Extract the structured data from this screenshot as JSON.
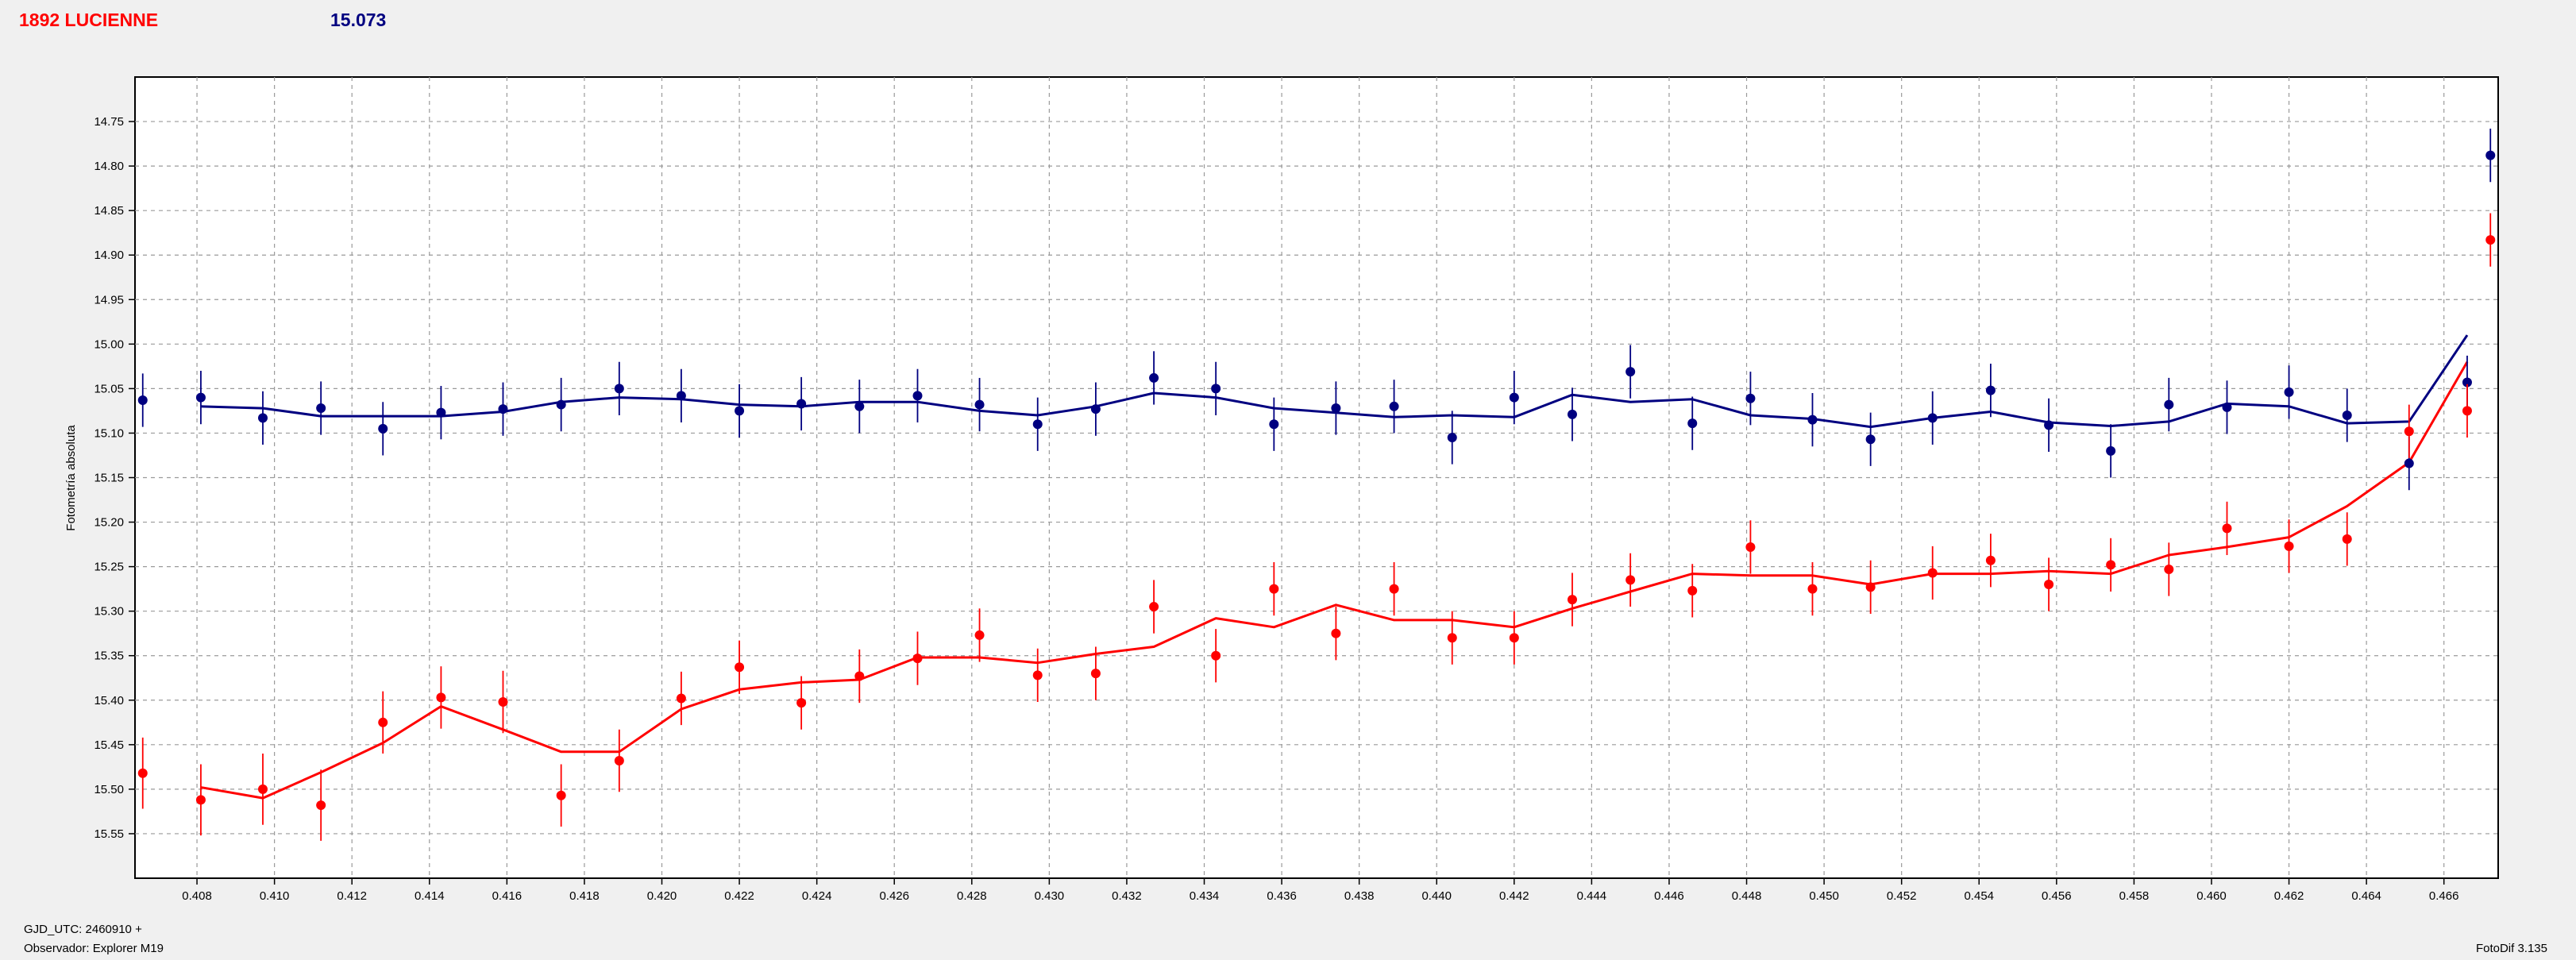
{
  "header": {
    "object_name": "1892 LUCIENNE",
    "reference_value": "15.073"
  },
  "footer": {
    "gjd": "GJD_UTC: 2460910 +",
    "observer": "Observador: Explorer M19",
    "software": "FotoDif 3.135"
  },
  "chart_data": {
    "type": "scatter",
    "ylabel": "Fotometría absoluta",
    "xlabel": "",
    "xlim": [
      0.4064,
      0.4674
    ],
    "ylim": [
      15.6,
      14.7
    ],
    "y_inverted": true,
    "grid": true,
    "x_ticks": [
      "0.408",
      "0.410",
      "0.412",
      "0.414",
      "0.416",
      "0.418",
      "0.420",
      "0.422",
      "0.424",
      "0.426",
      "0.428",
      "0.430",
      "0.432",
      "0.434",
      "0.436",
      "0.438",
      "0.440",
      "0.442",
      "0.444",
      "0.446",
      "0.448",
      "0.450",
      "0.452",
      "0.454",
      "0.456",
      "0.458",
      "0.460",
      "0.462",
      "0.464",
      "0.466"
    ],
    "y_ticks": [
      "14.75",
      "14.80",
      "14.85",
      "14.90",
      "14.95",
      "15.00",
      "15.05",
      "15.10",
      "15.15",
      "15.20",
      "15.25",
      "15.30",
      "15.35",
      "15.40",
      "15.45",
      "15.50",
      "15.55"
    ],
    "colors": {
      "blue": "#000080",
      "red": "#ff0000",
      "grid": "#9a9a9a"
    },
    "series": [
      {
        "color": "#000080",
        "points": {
          "x": [
            0.4066,
            0.4081,
            0.4097,
            0.4112,
            0.4128,
            0.4143,
            0.4159,
            0.4174,
            0.4189,
            0.4205,
            0.422,
            0.4236,
            0.4251,
            0.4266,
            0.4282,
            0.4297,
            0.4312,
            0.4327,
            0.4343,
            0.4358,
            0.4374,
            0.4389,
            0.4404,
            0.442,
            0.4435,
            0.445,
            0.4466,
            0.4481,
            0.4497,
            0.4512,
            0.4528,
            0.4543,
            0.4558,
            0.4574,
            0.4589,
            0.4604,
            0.462,
            0.4635,
            0.4651,
            0.4666,
            0.4672
          ],
          "y": [
            15.063,
            15.06,
            15.083,
            15.072,
            15.095,
            15.077,
            15.073,
            15.068,
            15.05,
            15.058,
            15.075,
            15.067,
            15.07,
            15.058,
            15.068,
            15.09,
            15.073,
            15.038,
            15.05,
            15.09,
            15.072,
            15.07,
            15.105,
            15.06,
            15.079,
            15.031,
            15.089,
            15.061,
            15.085,
            15.107,
            15.083,
            15.052,
            15.091,
            15.12,
            15.068,
            15.071,
            15.054,
            15.08,
            15.134,
            15.043,
            14.788
          ],
          "err": [
            0.03,
            0.03,
            0.03,
            0.03,
            0.03,
            0.03,
            0.03,
            0.03,
            0.03,
            0.03,
            0.03,
            0.03,
            0.03,
            0.03,
            0.03,
            0.03,
            0.03,
            0.03,
            0.03,
            0.03,
            0.03,
            0.03,
            0.03,
            0.03,
            0.03,
            0.03,
            0.03,
            0.03,
            0.03,
            0.03,
            0.03,
            0.03,
            0.03,
            0.03,
            0.03,
            0.03,
            0.03,
            0.03,
            0.03,
            0.03,
            0.03
          ]
        },
        "line": {
          "x": [
            0.4081,
            0.4097,
            0.4112,
            0.4128,
            0.4143,
            0.4159,
            0.4174,
            0.4189,
            0.4205,
            0.422,
            0.4236,
            0.4251,
            0.4266,
            0.4282,
            0.4297,
            0.4312,
            0.4327,
            0.4343,
            0.4358,
            0.4374,
            0.4389,
            0.4404,
            0.442,
            0.4435,
            0.445,
            0.4466,
            0.4481,
            0.4497,
            0.4512,
            0.4528,
            0.4543,
            0.4558,
            0.4574,
            0.4589,
            0.4604,
            0.462,
            0.4635,
            0.4651,
            0.4666
          ],
          "y": [
            15.07,
            15.072,
            15.081,
            15.081,
            15.081,
            15.076,
            15.065,
            15.06,
            15.062,
            15.068,
            15.07,
            15.065,
            15.065,
            15.075,
            15.08,
            15.07,
            15.055,
            15.06,
            15.072,
            15.077,
            15.082,
            15.08,
            15.082,
            15.057,
            15.065,
            15.062,
            15.08,
            15.084,
            15.093,
            15.083,
            15.076,
            15.088,
            15.092,
            15.087,
            15.067,
            15.07,
            15.089,
            15.087,
            14.99
          ]
        }
      },
      {
        "color": "#ff0000",
        "points": {
          "x": [
            0.4066,
            0.4081,
            0.4097,
            0.4112,
            0.4128,
            0.4143,
            0.4159,
            0.4174,
            0.4189,
            0.4205,
            0.422,
            0.4236,
            0.4251,
            0.4266,
            0.4282,
            0.4297,
            0.4312,
            0.4327,
            0.4343,
            0.4358,
            0.4374,
            0.4389,
            0.4404,
            0.442,
            0.4435,
            0.445,
            0.4466,
            0.4481,
            0.4497,
            0.4512,
            0.4528,
            0.4543,
            0.4558,
            0.4574,
            0.4589,
            0.4604,
            0.462,
            0.4635,
            0.4651,
            0.4666,
            0.4672
          ],
          "y": [
            15.482,
            15.512,
            15.5,
            15.518,
            15.425,
            15.397,
            15.402,
            15.507,
            15.468,
            15.398,
            15.363,
            15.403,
            15.373,
            15.353,
            15.327,
            15.372,
            15.37,
            15.295,
            15.35,
            15.275,
            15.325,
            15.275,
            15.33,
            15.33,
            15.287,
            15.265,
            15.277,
            15.228,
            15.275,
            15.273,
            15.257,
            15.243,
            15.27,
            15.248,
            15.253,
            15.207,
            15.227,
            15.219,
            15.098,
            15.075,
            14.883
          ],
          "err": [
            0.04,
            0.04,
            0.04,
            0.04,
            0.035,
            0.035,
            0.035,
            0.035,
            0.035,
            0.03,
            0.03,
            0.03,
            0.03,
            0.03,
            0.03,
            0.03,
            0.03,
            0.03,
            0.03,
            0.03,
            0.03,
            0.03,
            0.03,
            0.03,
            0.03,
            0.03,
            0.03,
            0.03,
            0.03,
            0.03,
            0.03,
            0.03,
            0.03,
            0.03,
            0.03,
            0.03,
            0.03,
            0.03,
            0.03,
            0.03,
            0.03
          ]
        },
        "line": {
          "x": [
            0.4081,
            0.4097,
            0.4112,
            0.4128,
            0.4143,
            0.4159,
            0.4174,
            0.4189,
            0.4205,
            0.422,
            0.4236,
            0.4251,
            0.4266,
            0.4282,
            0.4297,
            0.4312,
            0.4327,
            0.4343,
            0.4358,
            0.4374,
            0.4389,
            0.4404,
            0.442,
            0.4435,
            0.445,
            0.4466,
            0.4481,
            0.4497,
            0.4512,
            0.4528,
            0.4543,
            0.4558,
            0.4574,
            0.4589,
            0.4604,
            0.462,
            0.4635,
            0.4651,
            0.4666
          ],
          "y": [
            15.498,
            15.51,
            15.481,
            15.448,
            15.407,
            15.433,
            15.458,
            15.458,
            15.41,
            15.388,
            15.38,
            15.377,
            15.352,
            15.352,
            15.358,
            15.348,
            15.34,
            15.308,
            15.318,
            15.293,
            15.31,
            15.31,
            15.318,
            15.297,
            15.278,
            15.258,
            15.26,
            15.26,
            15.27,
            15.258,
            15.258,
            15.255,
            15.258,
            15.237,
            15.228,
            15.217,
            15.182,
            15.133,
            15.02
          ]
        }
      }
    ]
  }
}
